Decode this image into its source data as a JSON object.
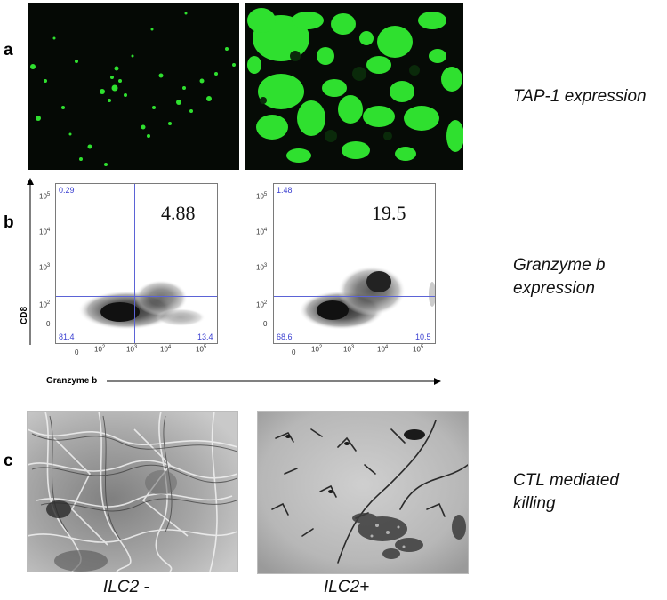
{
  "panels": {
    "a": {
      "letter": "a",
      "label": "TAP-1 expression"
    },
    "b": {
      "letter": "b",
      "label_line1": "Granzyme b",
      "label_line2": "expression",
      "y_axis_label": "CD8",
      "x_axis_label": "Granzyme b",
      "plots": [
        {
          "ul": "0.29",
          "ll": "81.4",
          "lr": "13.4",
          "ur": "4.88"
        },
        {
          "ul": "1.48",
          "ll": "68.6",
          "lr": "10.5",
          "ur": "19.5"
        }
      ],
      "y_ticks": [
        "10",
        "10",
        "10",
        "10",
        "0"
      ],
      "y_tick_exps": [
        "5",
        "4",
        "3",
        "2",
        ""
      ],
      "x_ticks": [
        "0",
        "10",
        "10",
        "10",
        "10"
      ],
      "x_tick_exps": [
        "",
        "2",
        "3",
        "4",
        "5"
      ]
    },
    "c": {
      "letter": "c",
      "label_line1": "CTL mediated",
      "label_line2": "killing"
    }
  },
  "conditions": [
    "ILC2 -",
    "ILC2+"
  ],
  "colors": {
    "fluorescence": "#2fe02f",
    "gate": "#5b63d6",
    "quadrant_text": "#3a3fd0"
  }
}
